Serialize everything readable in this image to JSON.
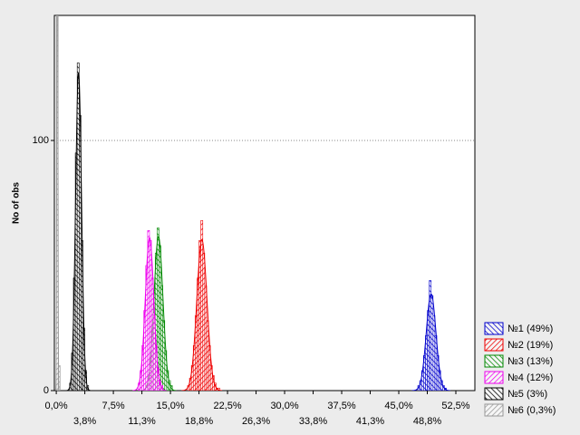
{
  "chart_data": {
    "type": "histogram",
    "y_label": "No of obs",
    "xlim": [
      -0.25,
      55
    ],
    "ylim": [
      0,
      150
    ],
    "yticks": [
      0,
      100
    ],
    "xticks": [
      {
        "value": 0,
        "label": "0,0%"
      },
      {
        "value": 3.75,
        "label": "3,8%"
      },
      {
        "value": 7.5,
        "label": "7,5%"
      },
      {
        "value": 11.25,
        "label": "11,3%"
      },
      {
        "value": 15,
        "label": "15,0%"
      },
      {
        "value": 18.75,
        "label": "18,8%"
      },
      {
        "value": 22.5,
        "label": "22,5%"
      },
      {
        "value": 26.25,
        "label": "26,3%"
      },
      {
        "value": 30,
        "label": "30,0%"
      },
      {
        "value": 33.75,
        "label": "33,8%"
      },
      {
        "value": 37.5,
        "label": "37,5%"
      },
      {
        "value": 41.25,
        "label": "41,3%"
      },
      {
        "value": 45,
        "label": "45,0%"
      },
      {
        "value": 48.75,
        "label": "48,8%"
      },
      {
        "value": 52.5,
        "label": "52,5%"
      }
    ],
    "grid": true,
    "legend": "lower right",
    "series": [
      {
        "name": "№1 (49%)",
        "color": "#0000cc",
        "bins": [
          47.5,
          47.75,
          48,
          48.25,
          48.5,
          48.75,
          49,
          49.25,
          49.5,
          49.75,
          50,
          50.25,
          50.5,
          50.75,
          51,
          51.25
        ],
        "values": [
          2,
          4,
          8,
          14,
          22,
          32,
          44,
          38,
          30,
          22,
          14,
          8,
          4,
          2,
          1
        ]
      },
      {
        "name": "№2 (19%)",
        "color": "#ee0000",
        "bins": [
          17.25,
          17.5,
          17.75,
          18,
          18.25,
          18.5,
          18.75,
          19,
          19.25,
          19.5,
          19.75,
          20,
          20.25,
          20.5,
          20.75,
          21,
          21.25,
          21.5
        ],
        "values": [
          2,
          5,
          10,
          18,
          30,
          45,
          60,
          68,
          55,
          42,
          28,
          18,
          10,
          6,
          3,
          1,
          1
        ]
      },
      {
        "name": "№3 (13%)",
        "color": "#008800",
        "bins": [
          11.75,
          12,
          12.25,
          12.5,
          12.75,
          13,
          13.25,
          13.5,
          13.75,
          14,
          14.25,
          14.5,
          14.75,
          15,
          15.25
        ],
        "values": [
          2,
          5,
          12,
          25,
          40,
          55,
          65,
          58,
          42,
          28,
          16,
          8,
          4,
          2
        ]
      },
      {
        "name": "№4 (12%)",
        "color": "#ee00ee",
        "bins": [
          10.75,
          11,
          11.25,
          11.5,
          11.75,
          12,
          12.25,
          12.5,
          12.75,
          13,
          13.25,
          13.5,
          13.75,
          14
        ],
        "values": [
          3,
          8,
          18,
          32,
          50,
          64,
          60,
          45,
          30,
          18,
          9,
          4,
          2
        ]
      },
      {
        "name": "№5 (3%)",
        "color": "#000000",
        "bins": [
          1.75,
          2,
          2.25,
          2.5,
          2.75,
          3,
          3.25,
          3.5,
          3.75,
          4,
          4.25
        ],
        "values": [
          3,
          15,
          45,
          95,
          131,
          110,
          60,
          25,
          8,
          2
        ]
      },
      {
        "name": "№6 (0,3%)",
        "color": "#999999",
        "bins": [
          0,
          0.25,
          0.5
        ],
        "values": [
          150,
          10
        ]
      }
    ]
  }
}
